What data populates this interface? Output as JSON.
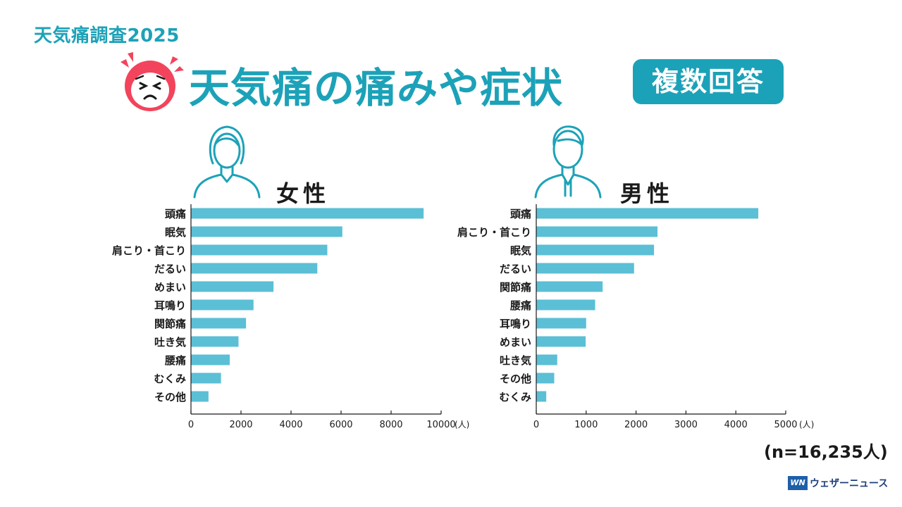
{
  "header": {
    "survey_label": "天気痛調査2025",
    "title": "天気痛の痛みや症状",
    "badge": "複数回答"
  },
  "colors": {
    "accent": "#1ca2b8",
    "bar": "#5bbfd6",
    "face": "#f2445c"
  },
  "icons": {
    "face": "pained-face-icon",
    "female": "female-person-icon",
    "male": "male-person-icon"
  },
  "chart_data": [
    {
      "type": "bar",
      "orientation": "horizontal",
      "title": "女性",
      "categories": [
        "頭痛",
        "眠気",
        "肩こり・首こり",
        "だるい",
        "めまい",
        "耳鳴り",
        "関節痛",
        "吐き気",
        "腰痛",
        "むくみ",
        "その他"
      ],
      "values": [
        9300,
        6050,
        5450,
        5050,
        3300,
        2500,
        2200,
        1900,
        1550,
        1200,
        700
      ],
      "xlim": [
        0,
        10000
      ],
      "ticks": [
        "0",
        "2000",
        "4000",
        "6000",
        "8000",
        "10000"
      ],
      "tick_values": [
        0,
        2000,
        4000,
        6000,
        8000,
        10000
      ],
      "unit": "(人)"
    },
    {
      "type": "bar",
      "orientation": "horizontal",
      "title": "男性",
      "categories": [
        "頭痛",
        "肩こり・首こり",
        "眠気",
        "だるい",
        "関節痛",
        "腰痛",
        "耳鳴り",
        "めまい",
        "吐き気",
        "その他",
        "むくみ"
      ],
      "values": [
        4450,
        2430,
        2360,
        1960,
        1330,
        1180,
        1000,
        990,
        420,
        360,
        200
      ],
      "xlim": [
        0,
        5000
      ],
      "ticks": [
        "0",
        "1000",
        "2000",
        "3000",
        "4000",
        "5000"
      ],
      "tick_values": [
        0,
        1000,
        2000,
        3000,
        4000,
        5000
      ],
      "unit": "(人)"
    }
  ],
  "footer": {
    "sample_note": "(n=16,235人)",
    "brand_mark": "WN",
    "brand_name": "ウェザーニュース"
  }
}
